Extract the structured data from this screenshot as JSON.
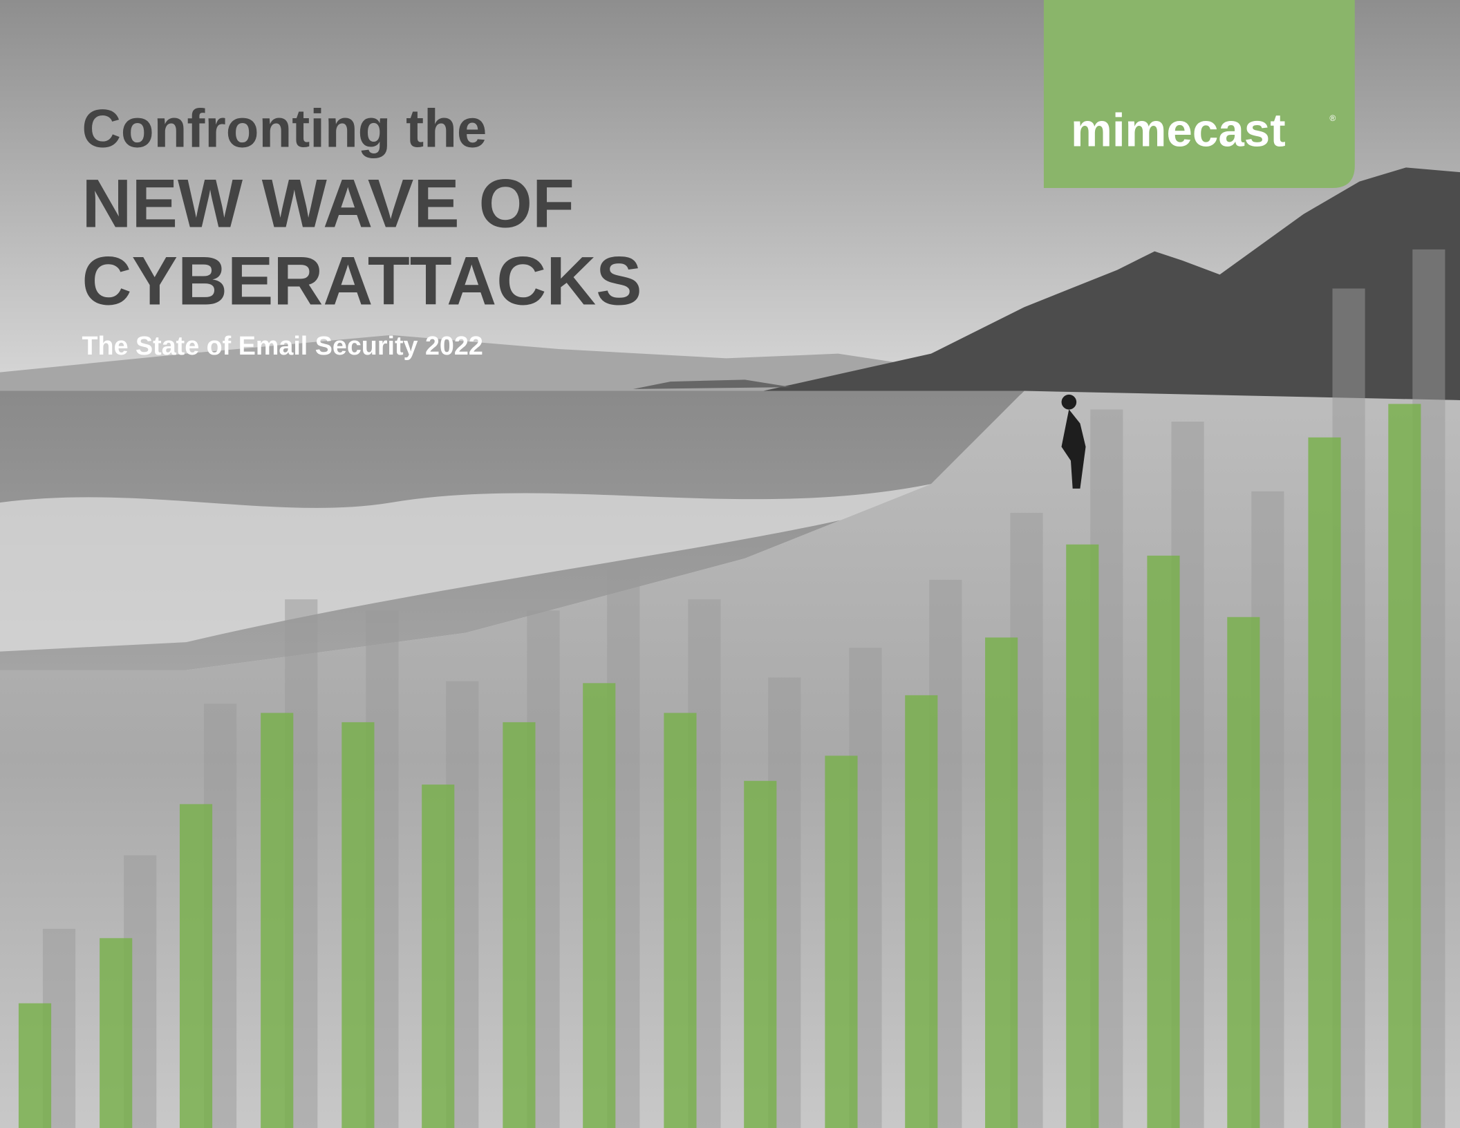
{
  "header": {
    "title_line1": "Confronting the",
    "title_line2": "NEW WAVE OF",
    "title_line3": "CYBERATTACKS",
    "subtitle": "The State of Email Security 2022"
  },
  "logo": {
    "text": "mimecast",
    "mark": "®"
  }
}
